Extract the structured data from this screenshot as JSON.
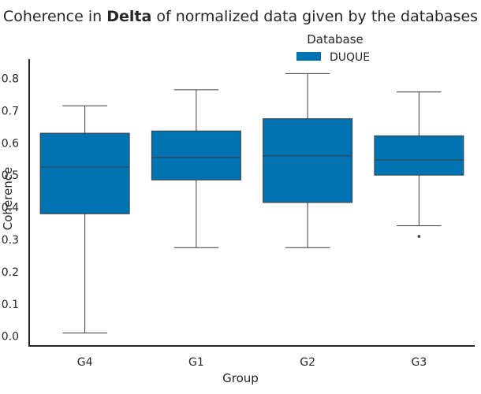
{
  "chart_data": {
    "type": "box",
    "title_prefix": "Coherence in ",
    "title_bold": "Delta",
    "title_suffix": " of normalized data given by the databases",
    "xlabel": "Group",
    "ylabel": "Coherence",
    "ylim": [
      -0.03,
      0.86
    ],
    "yticks": [
      "0.0",
      "0.1",
      "0.2",
      "0.3",
      "0.4",
      "0.5",
      "0.6",
      "0.7",
      "0.8"
    ],
    "categories": [
      "G4",
      "G1",
      "G2",
      "G3"
    ],
    "legend": {
      "title": "Database",
      "placement": "top-center"
    },
    "series": [
      {
        "name": "DUQUE",
        "color": "#0173b2",
        "boxes": [
          {
            "whisker_low": 0.01,
            "q1": 0.38,
            "median": 0.525,
            "q3": 0.63,
            "whisker_high": 0.715,
            "outliers": []
          },
          {
            "whisker_low": 0.275,
            "q1": 0.485,
            "median": 0.555,
            "q3": 0.637,
            "whisker_high": 0.765,
            "outliers": []
          },
          {
            "whisker_low": 0.275,
            "q1": 0.415,
            "median": 0.56,
            "q3": 0.675,
            "whisker_high": 0.815,
            "outliers": []
          },
          {
            "whisker_low": 0.343,
            "q1": 0.5,
            "median": 0.547,
            "q3": 0.622,
            "whisker_high": 0.758,
            "outliers": [
              0.31
            ]
          }
        ]
      }
    ]
  }
}
